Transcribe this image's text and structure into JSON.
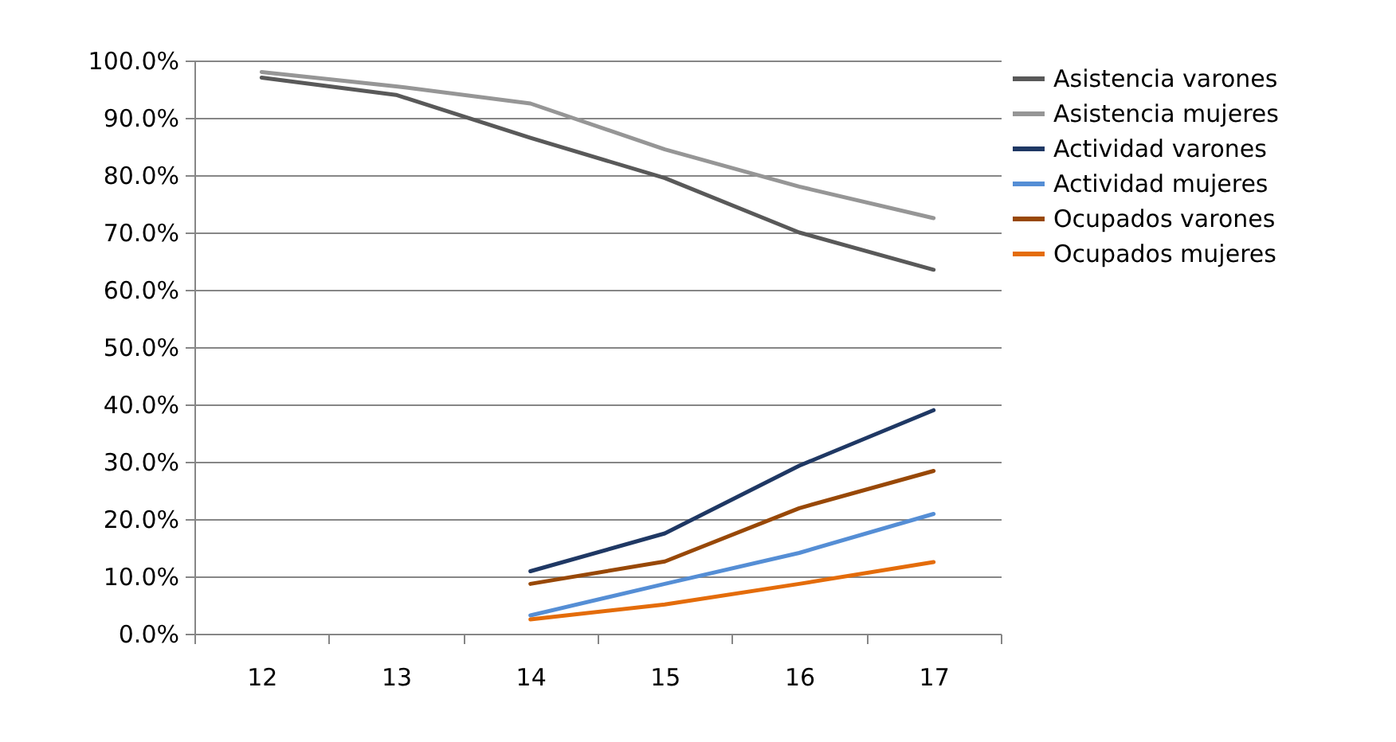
{
  "chart_data": {
    "type": "line",
    "categories": [
      "12",
      "13",
      "14",
      "15",
      "16",
      "17"
    ],
    "series": [
      {
        "name": "Asistencia varones",
        "color": "#595959",
        "values": [
          97.0,
          94.0,
          86.5,
          79.5,
          70.0,
          63.5
        ]
      },
      {
        "name": "Asistencia mujeres",
        "color": "#969696",
        "values": [
          98.0,
          95.5,
          92.5,
          84.5,
          78.0,
          72.5
        ]
      },
      {
        "name": "Actividad varones",
        "color": "#1f3864",
        "values": [
          null,
          null,
          10.9,
          17.5,
          29.3,
          39.0
        ]
      },
      {
        "name": "Actividad mujeres",
        "color": "#558ed5",
        "values": [
          null,
          null,
          3.2,
          8.7,
          14.1,
          20.9
        ]
      },
      {
        "name": "Ocupados varones",
        "color": "#984807",
        "values": [
          null,
          null,
          8.7,
          12.6,
          21.9,
          28.4
        ]
      },
      {
        "name": "Ocupados mujeres",
        "color": "#e46c0a",
        "values": [
          null,
          null,
          2.5,
          5.1,
          8.7,
          12.5
        ]
      }
    ],
    "ylim": [
      0,
      100
    ],
    "yticks": [
      {
        "value": 0,
        "label": "0.0%"
      },
      {
        "value": 10,
        "label": "10.0%"
      },
      {
        "value": 20,
        "label": "20.0%"
      },
      {
        "value": 30,
        "label": "30.0%"
      },
      {
        "value": 40,
        "label": "40.0%"
      },
      {
        "value": 50,
        "label": "50.0%"
      },
      {
        "value": 60,
        "label": "60.0%"
      },
      {
        "value": 70,
        "label": "70.0%"
      },
      {
        "value": 80,
        "label": "80.0%"
      },
      {
        "value": 90,
        "label": "90.0%"
      },
      {
        "value": 100,
        "label": "100.0%"
      }
    ],
    "grid": "y",
    "legend": "right",
    "marker": "none",
    "line_style": "solid"
  }
}
